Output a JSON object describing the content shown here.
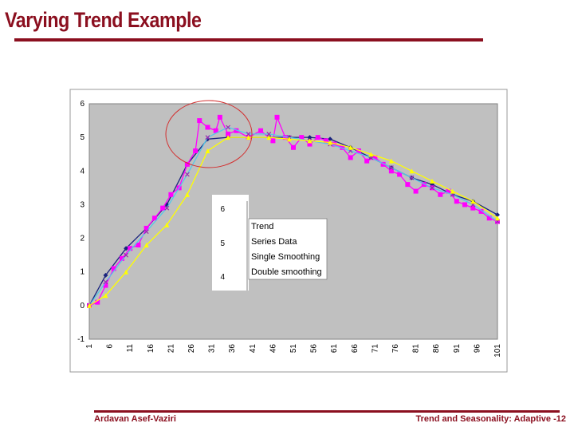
{
  "slide": {
    "title": "Varying Trend Example",
    "footer_left": "Ardavan Asef-Vaziri",
    "footer_right": "Trend and Seasonality: Adaptive -12"
  },
  "chart_data": {
    "type": "line",
    "title": "",
    "xlabel": "",
    "ylabel": "",
    "ylim": [
      -1,
      6
    ],
    "xlim": [
      1,
      101
    ],
    "y_ticks": [
      "6",
      "5",
      "4",
      "3",
      "2",
      "1",
      "0",
      "-1"
    ],
    "x_ticks": [
      "1",
      "6",
      "11",
      "16",
      "21",
      "26",
      "31",
      "36",
      "41",
      "46",
      "51",
      "56",
      "61",
      "66",
      "71",
      "76",
      "81",
      "86",
      "91",
      "96",
      "101"
    ],
    "series": [
      {
        "name": "Trend",
        "color": "#1a237e",
        "marker": "diamond",
        "x": [
          1,
          5,
          10,
          15,
          20,
          25,
          30,
          35,
          40,
          45,
          50,
          55,
          60,
          65,
          70,
          75,
          80,
          85,
          90,
          95,
          101
        ],
        "values": [
          0,
          0.9,
          1.7,
          2.3,
          3.0,
          4.2,
          4.95,
          5.0,
          5.0,
          5.0,
          5.0,
          5.0,
          4.95,
          4.7,
          4.4,
          4.1,
          3.8,
          3.6,
          3.3,
          3.1,
          2.7
        ]
      },
      {
        "name": "Series Data",
        "color": "#ff00ff",
        "marker": "square",
        "x": [
          1,
          3,
          5,
          7,
          9,
          11,
          13,
          15,
          17,
          19,
          21,
          23,
          25,
          27,
          28,
          30,
          32,
          33,
          35,
          37,
          40,
          43,
          46,
          47,
          49,
          51,
          53,
          55,
          57,
          59,
          61,
          63,
          65,
          67,
          69,
          71,
          73,
          75,
          77,
          79,
          81,
          83,
          85,
          87,
          89,
          91,
          93,
          95,
          97,
          99,
          101
        ],
        "values": [
          0,
          0.1,
          0.6,
          1.1,
          1.4,
          1.7,
          1.8,
          2.3,
          2.6,
          2.9,
          3.3,
          3.5,
          4.2,
          4.6,
          5.5,
          5.3,
          5.2,
          5.6,
          5.1,
          5.2,
          5.0,
          5.2,
          4.9,
          5.6,
          5.0,
          4.7,
          5.0,
          4.8,
          5.0,
          4.9,
          4.8,
          4.7,
          4.4,
          4.6,
          4.3,
          4.4,
          4.2,
          4.0,
          3.9,
          3.6,
          3.4,
          3.6,
          3.5,
          3.3,
          3.4,
          3.1,
          3.0,
          2.9,
          2.8,
          2.6,
          2.5
        ]
      },
      {
        "name": "Single Smoothing",
        "color": "#55c8e8",
        "marker": "x",
        "x": [
          1,
          5,
          10,
          15,
          20,
          25,
          30,
          35,
          40,
          45,
          50,
          55,
          60,
          65,
          70,
          75,
          80,
          85,
          90,
          95,
          101
        ],
        "values": [
          0,
          0.7,
          1.5,
          2.2,
          2.9,
          3.9,
          5.0,
          5.3,
          5.1,
          5.1,
          5.0,
          4.9,
          4.8,
          4.6,
          4.4,
          4.1,
          3.8,
          3.5,
          3.3,
          3.0,
          2.5
        ]
      },
      {
        "name": "Double smoothing",
        "color": "#ffff00",
        "marker": "triangle",
        "x": [
          1,
          5,
          10,
          15,
          20,
          25,
          30,
          35,
          40,
          45,
          50,
          55,
          60,
          65,
          70,
          75,
          80,
          85,
          90,
          95,
          101
        ],
        "values": [
          0,
          0.3,
          1.0,
          1.8,
          2.4,
          3.3,
          4.6,
          5.0,
          5.0,
          5.0,
          4.95,
          4.9,
          4.85,
          4.7,
          4.5,
          4.3,
          4.0,
          3.7,
          3.4,
          3.1,
          2.6
        ]
      }
    ],
    "legend": {
      "placement": "center-left",
      "mini_axis_ticks": [
        "6",
        "5",
        "4"
      ]
    },
    "annotation": "red ellipse highlighting the peak region"
  }
}
